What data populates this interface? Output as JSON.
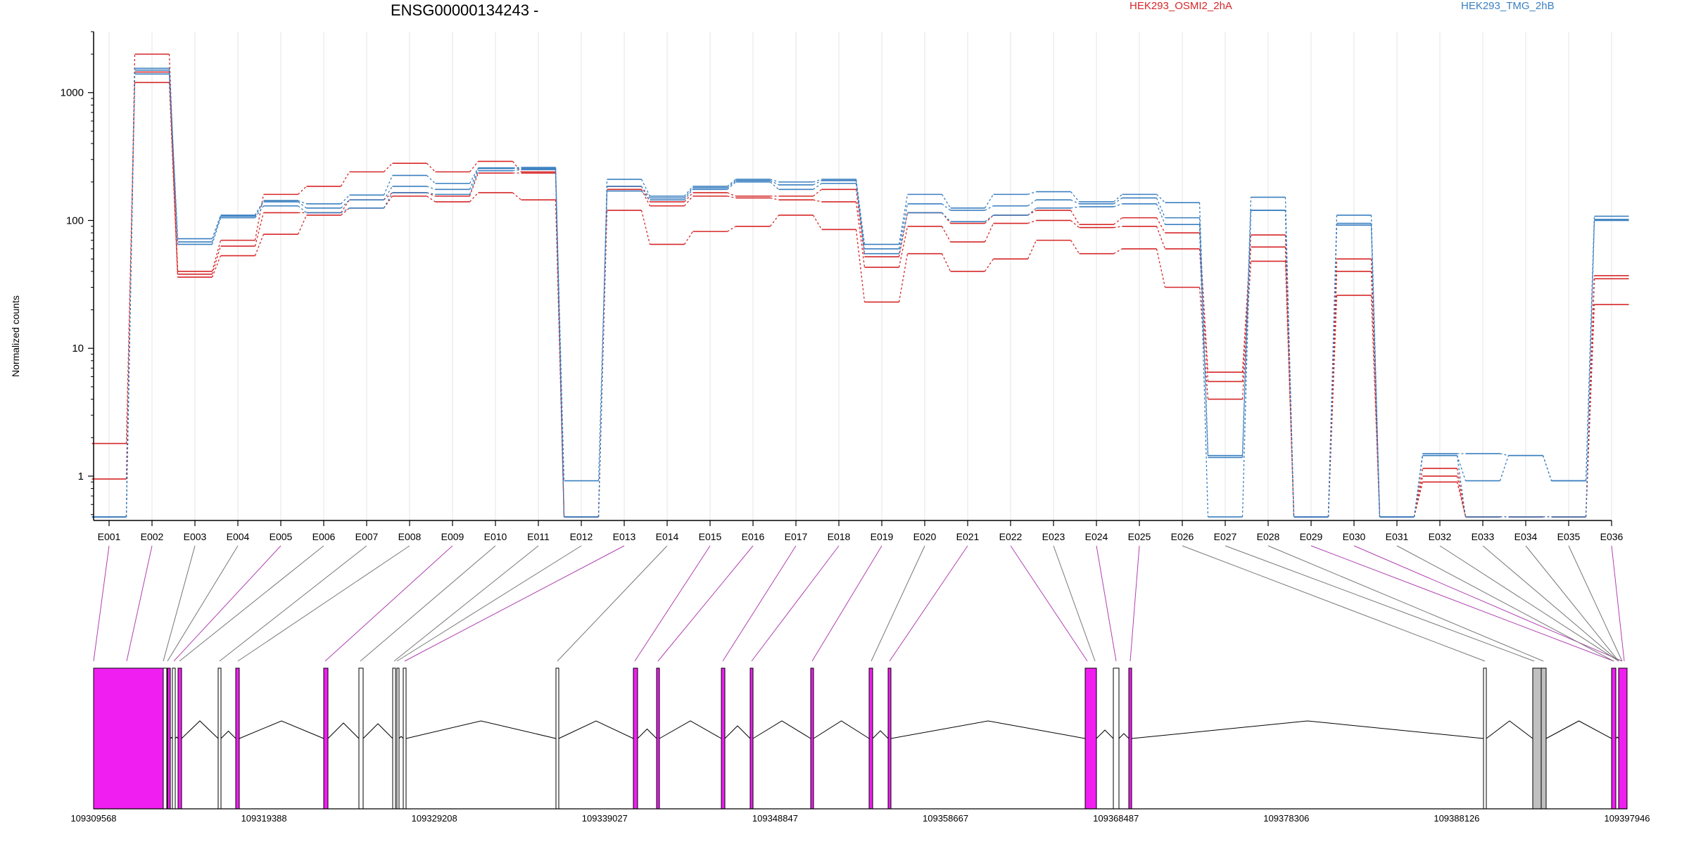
{
  "header": {
    "gene_title": "ENSG00000134243 -",
    "legend_red": "HEK293_OSMI2_2hA",
    "legend_blue": "HEK293_TMG_2hB"
  },
  "colors": {
    "red": "#d62728",
    "blue": "#3a7fc0",
    "magenta": "#f01ef0",
    "grey_exon": "#c0c0c0",
    "grid": "#e6e6e6"
  },
  "chart_data": {
    "type": "line",
    "yscale": "log",
    "ylabel": "Normalized counts",
    "ylim": [
      0.45,
      3000
    ],
    "yticks": [
      {
        "value": 1000,
        "label": "1000"
      },
      {
        "value": 100,
        "label": "100"
      },
      {
        "value": 10,
        "label": "10"
      },
      {
        "value": 1,
        "label": "1"
      }
    ],
    "grid": true,
    "legend": "top",
    "categories": [
      "E001",
      "E002",
      "E003",
      "E004",
      "E005",
      "E006",
      "E007",
      "E008",
      "E009",
      "E010",
      "E011",
      "E012",
      "E013",
      "E014",
      "E015",
      "E016",
      "E017",
      "E018",
      "E019",
      "E020",
      "E021",
      "E022",
      "E023",
      "E024",
      "E025",
      "E026",
      "E027",
      "E028",
      "E029",
      "E030",
      "E031",
      "E032",
      "E033",
      "E034",
      "E035",
      "E036"
    ],
    "series": [
      {
        "group": "red",
        "values": [
          1.8,
          1200,
          36,
          53,
          78,
          110,
          125,
          155,
          140,
          165,
          145,
          0.48,
          120,
          65,
          82,
          90,
          110,
          85,
          23,
          55,
          40,
          50,
          70,
          55,
          60,
          30,
          4.0,
          48,
          0.48,
          26,
          0.48,
          0.9,
          0.48,
          0.48,
          0.48,
          22
        ]
      },
      {
        "group": "red",
        "values": [
          0.95,
          1450,
          38,
          63,
          115,
          115,
          145,
          165,
          155,
          235,
          235,
          0.48,
          175,
          130,
          155,
          150,
          145,
          140,
          43,
          90,
          68,
          95,
          100,
          88,
          90,
          60,
          5.5,
          62,
          0.48,
          40,
          0.48,
          1.0,
          0.48,
          0.48,
          0.48,
          35
        ]
      },
      {
        "group": "red",
        "values": [
          0.48,
          2000,
          40,
          70,
          160,
          185,
          240,
          280,
          240,
          290,
          240,
          0.48,
          185,
          140,
          165,
          155,
          155,
          175,
          52,
          115,
          95,
          110,
          120,
          93,
          105,
          80,
          6.5,
          77,
          0.48,
          50,
          0.48,
          1.15,
          0.48,
          0.48,
          0.48,
          37
        ]
      },
      {
        "group": "blue",
        "values": [
          0.48,
          1400,
          65,
          105,
          130,
          115,
          125,
          165,
          160,
          245,
          250,
          0.92,
          170,
          145,
          175,
          200,
          175,
          195,
          55,
          115,
          98,
          110,
          125,
          128,
          135,
          93,
          0.48,
          120,
          0.48,
          92,
          0.48,
          1.45,
          0.48,
          0.48,
          0.48,
          100
        ]
      },
      {
        "group": "blue",
        "values": [
          0.48,
          1500,
          68,
          108,
          140,
          125,
          145,
          185,
          175,
          255,
          255,
          0.48,
          185,
          150,
          180,
          205,
          190,
          205,
          60,
          135,
          120,
          130,
          145,
          135,
          150,
          105,
          1.4,
          120,
          0.48,
          95,
          0.48,
          1.45,
          0.92,
          1.45,
          0.92,
          102
        ]
      },
      {
        "group": "blue",
        "values": [
          0.48,
          1550,
          72,
          110,
          143,
          135,
          158,
          225,
          195,
          258,
          260,
          0.48,
          210,
          155,
          185,
          210,
          200,
          210,
          65,
          160,
          125,
          160,
          168,
          140,
          160,
          138,
          1.45,
          152,
          0.48,
          110,
          0.48,
          1.5,
          1.5,
          1.45,
          0.92,
          108
        ]
      }
    ]
  },
  "genome_axis": {
    "ticks": [
      "109309568",
      "109319388",
      "109329208",
      "109339027",
      "109348847",
      "109358667",
      "109368487",
      "109378306",
      "109388126",
      "109397946"
    ]
  }
}
